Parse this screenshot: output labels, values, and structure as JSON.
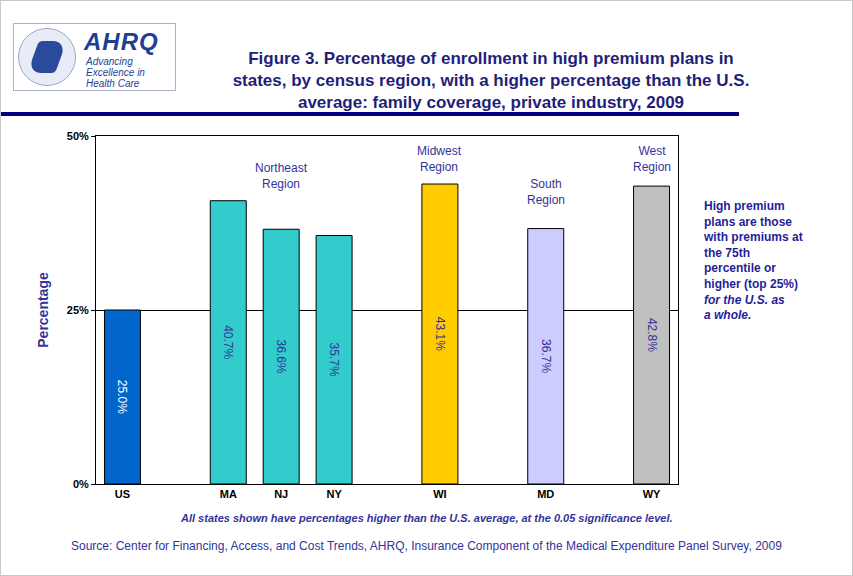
{
  "chart_data": {
    "type": "bar",
    "title": "Figure 3. Percentage of enrollment in high premium plans in states, by census region, with a higher percentage than the U.S. average: family coverage, private industry, 2009",
    "logo": {
      "name": "AHRQ",
      "tagline": "Advancing Excellence in Health Care"
    },
    "categories": [
      "US",
      null,
      "MA",
      "NJ",
      "NY",
      null,
      "WI",
      null,
      "MD",
      null,
      "WY"
    ],
    "values": [
      25.0,
      null,
      40.7,
      36.6,
      35.7,
      null,
      43.1,
      null,
      36.7,
      null,
      42.8
    ],
    "value_labels": [
      "25.0%",
      null,
      "40.7%",
      "36.6%",
      "35.7%",
      null,
      "43.1%",
      null,
      "36.7%",
      null,
      "42.8%"
    ],
    "colors": [
      "#0066cc",
      null,
      "#33cccc",
      "#33cccc",
      "#33cccc",
      null,
      "#ffcc00",
      null,
      "#ccccff",
      null,
      "#c0c0c0"
    ],
    "y_label": "Percentage",
    "ylim": [
      0,
      50
    ],
    "yticks": [
      {
        "value": 0,
        "label": "0%"
      },
      {
        "value": 25,
        "label": "25%"
      },
      {
        "value": 50,
        "label": "50%"
      }
    ],
    "grid": true,
    "data_labels": true,
    "annotations": [
      {
        "text": "Northeast Region",
        "category": "NJ",
        "y": 44.3
      },
      {
        "text": "Midwest Region",
        "category": "WI",
        "y": 46.7
      },
      {
        "text": "South Region",
        "category": "MD",
        "y": 42.0
      },
      {
        "text": "West Region",
        "category": "WY",
        "y": 46.7
      }
    ],
    "note": {
      "text": "High premium plans are those with premiums at the 75th percentile or higher (top 25%)",
      "italic_text": "for the U.S. as a whole."
    },
    "footnote": "All states shown have percentages higher than the U.S. average, at the 0.05 significance level.",
    "source": "Source: Center for Financing, Access, and Cost Trends, AHRQ, Insurance Component of the Medical Expenditure Panel Survey, 2009"
  }
}
